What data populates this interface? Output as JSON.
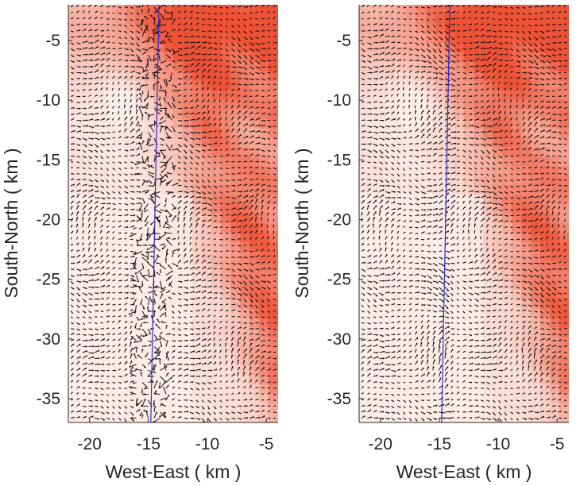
{
  "chart_data": [
    {
      "type": "heatmap",
      "title": "",
      "xlabel": "West-East ( km )",
      "ylabel": "South-North ( km )",
      "xlim": [
        -21.8,
        -4.0
      ],
      "ylim": [
        -37.0,
        -2.0
      ],
      "xticks": [
        -20,
        -15,
        -10,
        -5
      ],
      "xtick_labels": [
        "-20",
        "-15",
        "-10",
        "-5"
      ],
      "yticks": [
        -5,
        -10,
        -15,
        -20,
        -25,
        -30,
        -35
      ],
      "ytick_labels": [
        "-5",
        "-10",
        "-15",
        "-20",
        "-25",
        "-30",
        "-35"
      ],
      "overlay": "wind vector field (quiver)",
      "reference_line": {
        "x": [
          -14.8,
          -14.1
        ],
        "y": [
          -37.0,
          -2.0
        ],
        "color": "#2b2bd4"
      },
      "line_noise": "high",
      "colormap": [
        "#fdf0ec",
        "#ee5236"
      ]
    },
    {
      "type": "heatmap",
      "title": "",
      "xlabel": "West-East ( km )",
      "ylabel": "South-North ( km )",
      "xlim": [
        -21.8,
        -4.0
      ],
      "ylim": [
        -37.0,
        -2.0
      ],
      "xticks": [
        -20,
        -15,
        -10,
        -5
      ],
      "xtick_labels": [
        "-20",
        "-15",
        "-10",
        "-5"
      ],
      "yticks": [
        -5,
        -10,
        -15,
        -20,
        -25,
        -30,
        -35
      ],
      "ytick_labels": [
        "-5",
        "-10",
        "-15",
        "-20",
        "-25",
        "-30",
        "-35"
      ],
      "overlay": "wind vector field (quiver)",
      "reference_line": {
        "x": [
          -14.8,
          -14.1
        ],
        "y": [
          -37.0,
          -2.0
        ],
        "color": "#2b2bd4"
      },
      "line_noise": "low",
      "colormap": [
        "#fdf0ec",
        "#ee5236"
      ]
    }
  ]
}
